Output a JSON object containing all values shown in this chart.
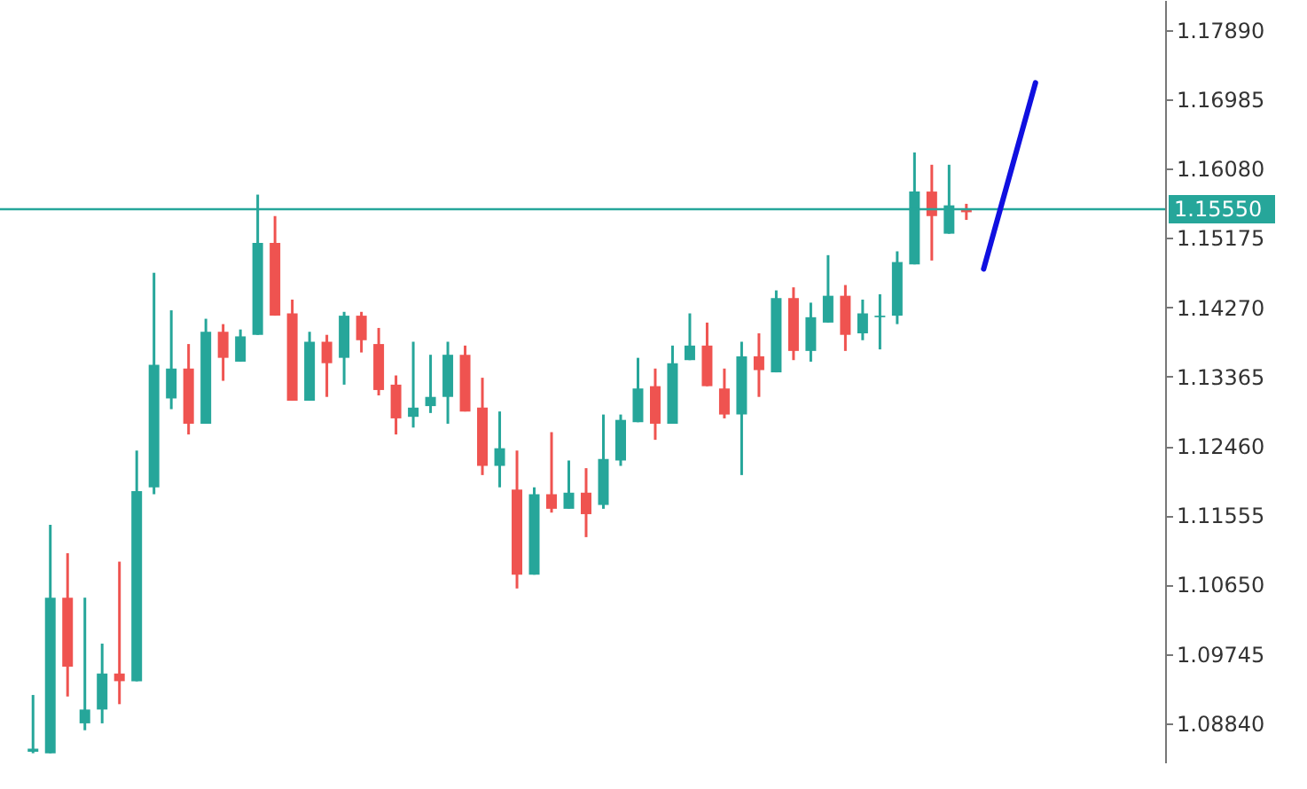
{
  "chart_data": {
    "type": "candlestick",
    "categories": [
      null,
      null,
      null,
      null,
      null,
      null,
      null,
      null,
      null,
      null,
      null,
      null,
      null,
      null,
      null,
      null,
      null,
      null,
      null,
      null,
      null,
      null,
      null,
      null,
      null,
      null,
      null,
      null,
      null,
      null,
      null,
      null,
      null,
      null,
      null,
      null,
      null,
      null,
      null,
      null,
      null,
      null,
      null,
      null,
      null,
      null,
      null,
      null,
      null,
      null,
      null,
      null,
      null,
      null,
      null,
      null,
      null,
      null,
      null,
      null,
      null,
      null,
      null,
      null,
      null,
      null,
      null
    ],
    "ohlc": [
      null,
      [
        1.0847,
        1.0921,
        1.0845,
        1.0851
      ],
      [
        1.0845,
        1.1143,
        1.0845,
        1.1048
      ],
      [
        1.1048,
        1.1106,
        1.0919,
        1.0958
      ],
      [
        1.0884,
        1.1048,
        1.0875,
        1.0902
      ],
      [
        1.0902,
        1.0988,
        1.0884,
        1.0949
      ],
      [
        1.0949,
        1.1095,
        1.0909,
        1.0939
      ],
      [
        1.0939,
        1.124,
        1.0939,
        1.1187
      ],
      [
        1.1192,
        1.1472,
        1.1183,
        1.1352
      ],
      [
        1.1308,
        1.1423,
        1.1294,
        1.1347
      ],
      [
        1.1347,
        1.1379,
        1.1261,
        1.1275
      ],
      [
        1.1275,
        1.1412,
        1.1275,
        1.1395
      ],
      [
        1.1395,
        1.1405,
        1.1331,
        1.1361
      ],
      [
        1.1356,
        1.1398,
        1.1356,
        1.1389
      ],
      [
        1.1391,
        1.1574,
        1.1391,
        1.1511
      ],
      [
        1.1511,
        1.1546,
        1.1416,
        1.1416
      ],
      [
        1.1419,
        1.1437,
        1.1305,
        1.1305
      ],
      [
        1.1305,
        1.1395,
        1.1305,
        1.1382
      ],
      [
        1.1382,
        1.1391,
        1.131,
        1.1354
      ],
      [
        1.1361,
        1.1421,
        1.1326,
        1.1416
      ],
      [
        1.1416,
        1.1421,
        1.1368,
        1.1384
      ],
      [
        1.1379,
        1.14,
        1.1312,
        1.1319
      ],
      [
        1.1326,
        1.1338,
        1.1261,
        1.1282
      ],
      [
        1.1284,
        1.1382,
        1.127,
        1.1296
      ],
      [
        1.1298,
        1.1365,
        1.1289,
        1.131
      ],
      [
        1.131,
        1.1382,
        1.1275,
        1.1365
      ],
      [
        1.1365,
        1.1377,
        1.1291,
        1.1291
      ],
      [
        1.1296,
        1.1335,
        1.1208,
        1.122
      ],
      [
        1.122,
        1.1291,
        1.1192,
        1.1243
      ],
      [
        1.1189,
        1.124,
        1.106,
        1.1078
      ],
      [
        1.1078,
        1.1192,
        1.1078,
        1.1183
      ],
      [
        1.1183,
        1.1264,
        1.1159,
        1.1164
      ],
      [
        1.1164,
        1.1227,
        1.1164,
        1.1185
      ],
      [
        1.1185,
        1.1217,
        1.1127,
        1.1157
      ],
      [
        1.1169,
        1.1287,
        1.1164,
        1.1229
      ],
      [
        1.1227,
        1.1287,
        1.122,
        1.128
      ],
      [
        1.1277,
        1.1361,
        1.1277,
        1.1321
      ],
      [
        1.1324,
        1.1347,
        1.1254,
        1.1275
      ],
      [
        1.1275,
        1.1377,
        1.1275,
        1.1354
      ],
      [
        1.1358,
        1.1419,
        1.1358,
        1.1377
      ],
      [
        1.1377,
        1.1407,
        1.1324,
        1.1324
      ],
      [
        1.1321,
        1.1347,
        1.1282,
        1.1287
      ],
      [
        1.1287,
        1.1382,
        1.1208,
        1.1363
      ],
      [
        1.1363,
        1.1393,
        1.131,
        1.1345
      ],
      [
        1.1342,
        1.1449,
        1.1342,
        1.1439
      ],
      [
        1.1439,
        1.1453,
        1.1358,
        1.137
      ],
      [
        1.137,
        1.1433,
        1.1356,
        1.1414
      ],
      [
        1.1407,
        1.1495,
        1.1407,
        1.1442
      ],
      [
        1.1442,
        1.1456,
        1.137,
        1.1391
      ],
      [
        1.1393,
        1.1437,
        1.1384,
        1.1419
      ],
      [
        1.1414,
        1.1444,
        1.1372,
        1.1416
      ],
      [
        1.1416,
        1.15,
        1.1405,
        1.1486
      ],
      [
        1.1483,
        1.1629,
        1.1483,
        1.1578
      ],
      [
        1.1578,
        1.1613,
        1.1488,
        1.1546
      ],
      [
        1.1523,
        1.1613,
        1.1523,
        1.156
      ],
      [
        1.1555,
        1.1562,
        1.1541,
        1.1551
      ],
      null,
      null,
      null,
      null,
      null,
      null,
      null,
      null,
      null,
      null,
      null
    ],
    "colors": [
      null,
      "#26a69a",
      "#26a69a",
      "#ef5350",
      "#26a69a",
      "#26a69a",
      "#ef5350",
      "#26a69a",
      "#26a69a",
      "#26a69a",
      "#ef5350",
      "#26a69a",
      "#ef5350",
      "#26a69a",
      "#26a69a",
      "#ef5350",
      "#ef5350",
      "#26a69a",
      "#ef5350",
      "#26a69a",
      "#ef5350",
      "#ef5350",
      "#ef5350",
      "#26a69a",
      "#26a69a",
      "#26a69a",
      "#ef5350",
      "#ef5350",
      "#26a69a",
      "#ef5350",
      "#26a69a",
      "#ef5350",
      "#26a69a",
      "#ef5350",
      "#26a69a",
      "#26a69a",
      "#26a69a",
      "#ef5350",
      "#26a69a",
      "#26a69a",
      "#ef5350",
      "#ef5350",
      "#26a69a",
      "#ef5350",
      "#26a69a",
      "#ef5350",
      "#26a69a",
      "#26a69a",
      "#ef5350",
      "#26a69a",
      "#26a69a",
      "#26a69a",
      "#26a69a",
      "#ef5350",
      "#26a69a",
      "#ef5350",
      null,
      null,
      null,
      null,
      null,
      null,
      null,
      null,
      null,
      null,
      null
    ],
    "series": [
      {
        "type": "line",
        "color": "#1010e0",
        "values": [
          null,
          null,
          null,
          null,
          null,
          null,
          null,
          null,
          null,
          null,
          null,
          null,
          null,
          null,
          null,
          null,
          null,
          null,
          null,
          null,
          null,
          null,
          null,
          null,
          null,
          null,
          null,
          null,
          null,
          null,
          null,
          null,
          null,
          null,
          null,
          null,
          null,
          null,
          null,
          null,
          null,
          null,
          null,
          null,
          null,
          null,
          null,
          null,
          null,
          null,
          null,
          null,
          null,
          null,
          null,
          null,
          1.1477,
          1.1558,
          1.1639,
          1.172,
          null,
          null,
          null,
          null,
          null,
          null,
          null
        ]
      }
    ],
    "ylim": [
      1.0833,
      1.1828
    ],
    "yticks": [
      {
        "value": 1.1789,
        "label": "1.17890"
      },
      {
        "value": 1.16985,
        "label": "1.16985"
      },
      {
        "value": 1.1608,
        "label": "1.16080"
      },
      {
        "value": 1.15175,
        "label": "1.15175"
      },
      {
        "value": 1.1427,
        "label": "1.14270"
      },
      {
        "value": 1.13365,
        "label": "1.13365"
      },
      {
        "value": 1.1246,
        "label": "1.12460"
      },
      {
        "value": 1.11555,
        "label": "1.11555"
      },
      {
        "value": 1.1065,
        "label": "1.10650"
      },
      {
        "value": 1.09745,
        "label": "1.09745"
      },
      {
        "value": 1.0884,
        "label": "1.08840"
      }
    ],
    "ref_lines": [
      {
        "axis": "y",
        "value": 1.1555,
        "label": "1.15550",
        "color": "#26a69a"
      }
    ],
    "tick_labels": "y"
  }
}
